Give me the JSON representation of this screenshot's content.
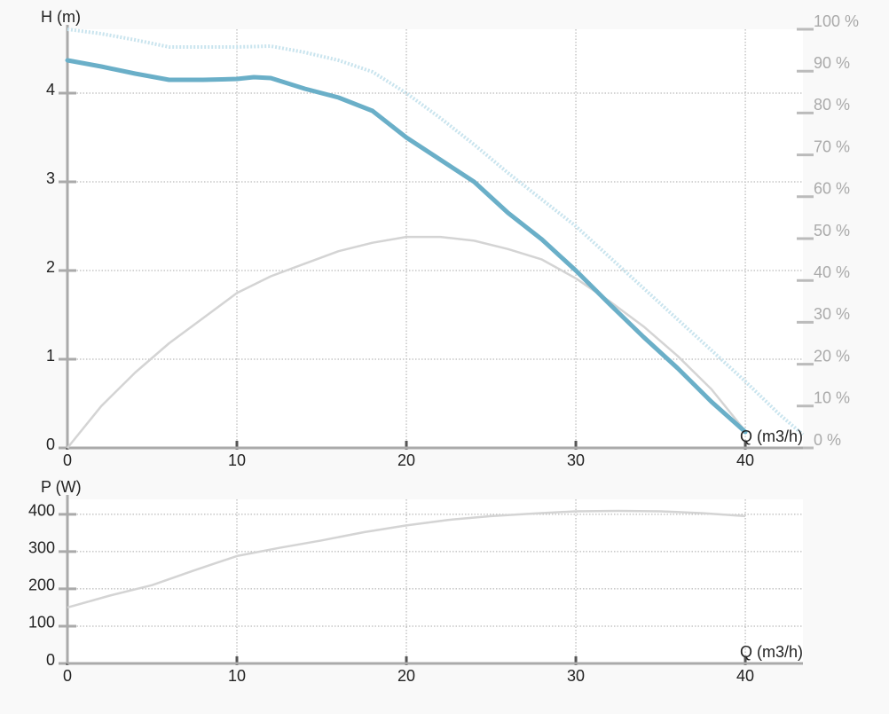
{
  "chart_data": [
    {
      "type": "line",
      "ylabel": "H (m)",
      "xlabel": "Q (m3/h)",
      "y2label": null,
      "xlim": [
        0,
        43.4
      ],
      "xticks": [
        0,
        10,
        20,
        30,
        40
      ],
      "ylim": [
        0,
        4.72
      ],
      "yticks": [
        0,
        1,
        2,
        3,
        4
      ],
      "y2lim": [
        0,
        100
      ],
      "y2ticks": [
        {
          "value": 0,
          "label": "0 %"
        },
        {
          "value": 10,
          "label": "10 %"
        },
        {
          "value": 20,
          "label": "20 %"
        },
        {
          "value": 30,
          "label": "30 %"
        },
        {
          "value": 40,
          "label": "40 %"
        },
        {
          "value": 50,
          "label": "50 %"
        },
        {
          "value": 60,
          "label": "60 %"
        },
        {
          "value": 70,
          "label": "70 %"
        },
        {
          "value": 80,
          "label": "80 %"
        },
        {
          "value": 90,
          "label": "90 %"
        },
        {
          "value": 100,
          "label": "100 %"
        }
      ],
      "grid": true,
      "series": [
        {
          "color": "#c9e4ee",
          "style": "dotted",
          "x": [
            0,
            2,
            4,
            6,
            8,
            10,
            12,
            14,
            16,
            18,
            20,
            22,
            24,
            26,
            28,
            30,
            32,
            34,
            36,
            38,
            40,
            42,
            43.4
          ],
          "values": [
            4.72,
            4.67,
            4.6,
            4.52,
            4.52,
            4.52,
            4.53,
            4.46,
            4.37,
            4.24,
            4.0,
            3.72,
            3.42,
            3.1,
            2.8,
            2.5,
            2.15,
            1.8,
            1.45,
            1.1,
            0.75,
            0.38,
            0.15
          ]
        },
        {
          "color": "#d4d4d4",
          "style": "thin",
          "axis": "y2",
          "x": [
            0,
            2,
            4,
            6,
            8,
            10,
            12,
            14,
            16,
            18,
            20,
            22,
            24,
            26,
            28,
            30,
            32,
            34,
            36,
            38,
            40
          ],
          "values": [
            0,
            10,
            18,
            25,
            31,
            37,
            41,
            44,
            47,
            49,
            50.4,
            50.4,
            49.5,
            47.5,
            45,
            40.5,
            35,
            29,
            22,
            14,
            4
          ]
        },
        {
          "color": "#6aafc8",
          "style": "thick",
          "x": [
            0,
            2,
            4,
            6,
            8,
            10,
            11,
            12,
            14,
            16,
            18,
            20,
            22,
            24,
            26,
            28,
            30,
            32,
            34,
            36,
            38,
            40
          ],
          "values": [
            4.37,
            4.3,
            4.22,
            4.15,
            4.15,
            4.16,
            4.18,
            4.17,
            4.05,
            3.95,
            3.8,
            3.5,
            3.25,
            3.0,
            2.65,
            2.35,
            2.0,
            1.62,
            1.25,
            0.9,
            0.52,
            0.18
          ]
        }
      ]
    },
    {
      "type": "line",
      "ylabel": "P (W)",
      "xlabel": "Q (m3/h)",
      "xlim": [
        0,
        43.4
      ],
      "xticks": [
        0,
        10,
        20,
        30,
        40
      ],
      "ylim": [
        0,
        440
      ],
      "yticks": [
        0,
        100,
        200,
        300,
        400
      ],
      "grid": true,
      "series": [
        {
          "color": "#d4d4d4",
          "style": "thin",
          "x": [
            0,
            2.5,
            5,
            7.5,
            10,
            12.5,
            15,
            17.5,
            20,
            22.5,
            25,
            27.5,
            30,
            32.5,
            35,
            37.5,
            40
          ],
          "values": [
            150,
            182,
            210,
            250,
            288,
            310,
            330,
            352,
            370,
            385,
            395,
            402,
            408,
            409,
            408,
            403,
            395
          ]
        }
      ]
    }
  ]
}
